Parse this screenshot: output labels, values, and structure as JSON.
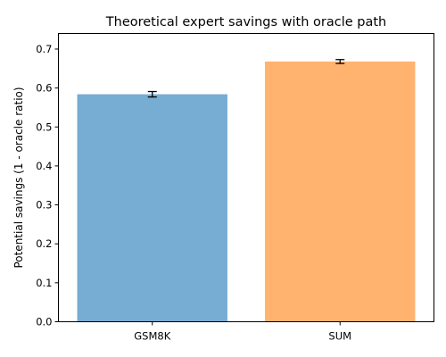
{
  "chart_data": {
    "type": "bar",
    "title": "Theoretical expert savings with oracle path",
    "xlabel": "",
    "ylabel": "Potential savings (1 - oracle ratio)",
    "categories": [
      "GSM8K",
      "SUM"
    ],
    "values": [
      0.584,
      0.668
    ],
    "errors": [
      0.007,
      0.005
    ],
    "colors": [
      "#77acd3",
      "#ffb36e"
    ],
    "ylim": [
      0,
      0.74
    ],
    "yticks": [
      {
        "value": 0.0,
        "label": "0.0"
      },
      {
        "value": 0.1,
        "label": "0.1"
      },
      {
        "value": 0.2,
        "label": "0.2"
      },
      {
        "value": 0.3,
        "label": "0.3"
      },
      {
        "value": 0.4,
        "label": "0.4"
      },
      {
        "value": 0.5,
        "label": "0.5"
      },
      {
        "value": 0.6,
        "label": "0.6"
      },
      {
        "value": 0.7,
        "label": "0.7"
      }
    ],
    "grid": false,
    "legend": "none"
  }
}
